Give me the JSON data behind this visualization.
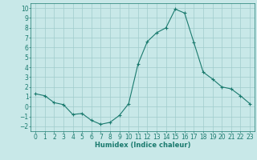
{
  "x": [
    0,
    1,
    2,
    3,
    4,
    5,
    6,
    7,
    8,
    9,
    10,
    11,
    12,
    13,
    14,
    15,
    16,
    17,
    18,
    19,
    20,
    21,
    22,
    23
  ],
  "y": [
    1.3,
    1.1,
    0.4,
    0.2,
    -0.8,
    -0.7,
    -1.4,
    -1.8,
    -1.6,
    -0.9,
    0.3,
    4.3,
    6.6,
    7.5,
    8.0,
    9.9,
    9.5,
    6.5,
    3.5,
    2.8,
    2.0,
    1.8,
    1.1,
    0.3
  ],
  "line_color": "#1a7a6e",
  "marker": "+",
  "bg_color": "#c8e8e8",
  "grid_color": "#a0cccc",
  "xlabel": "Humidex (Indice chaleur)",
  "xlim": [
    -0.5,
    23.5
  ],
  "ylim": [
    -2.5,
    10.5
  ],
  "yticks": [
    -2,
    -1,
    0,
    1,
    2,
    3,
    4,
    5,
    6,
    7,
    8,
    9,
    10
  ],
  "xticks": [
    0,
    1,
    2,
    3,
    4,
    5,
    6,
    7,
    8,
    9,
    10,
    11,
    12,
    13,
    14,
    15,
    16,
    17,
    18,
    19,
    20,
    21,
    22,
    23
  ],
  "label_fontsize": 6,
  "tick_fontsize": 5.5
}
